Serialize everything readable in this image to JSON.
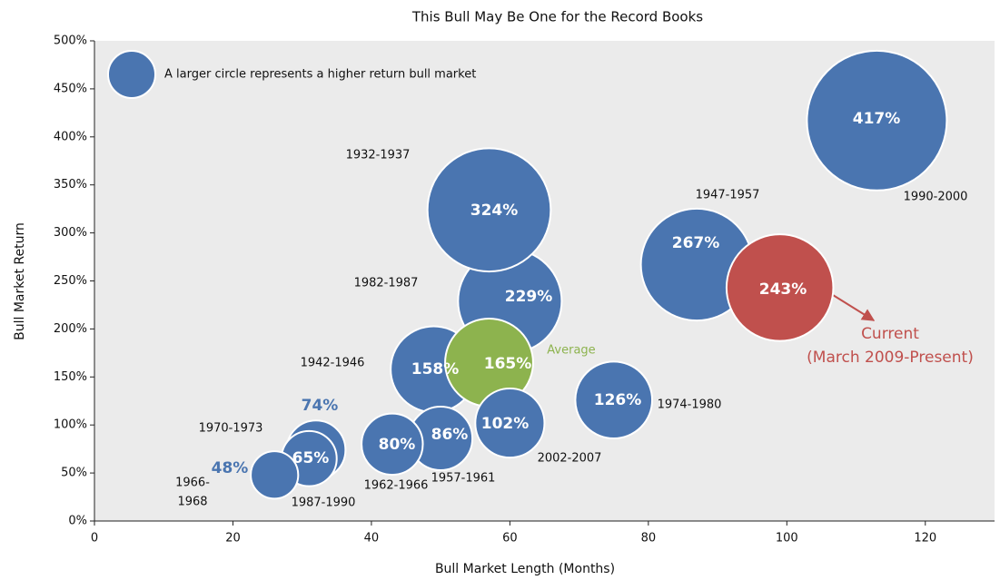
{
  "chart_data": {
    "type": "bubble",
    "title": "This Bull May Be One for the Record Books",
    "x_label": "Bull Market Length (Months)",
    "y_label": "Bull Market Return",
    "legend_text": "A larger circle represents a higher return bull market",
    "legend_color": "#4a75b0",
    "point_labels": [
      "1990-2000",
      "1947-1957",
      [
        "Current",
        "(March 2009-Present)"
      ],
      "1982-1987",
      "1932-1937",
      "1942-1946",
      "Average",
      "1974-1980",
      "2002-2007",
      "1957-1961",
      "1962-1966",
      "1970-1973",
      "1987-1990",
      [
        "1966-",
        "1968"
      ]
    ],
    "x": [
      113,
      87,
      99,
      60,
      57,
      49,
      57,
      75,
      60,
      50,
      43,
      32,
      31,
      26
    ],
    "values": [
      417,
      267,
      243,
      229,
      324,
      158,
      165,
      126,
      102,
      86,
      80,
      74,
      65,
      48
    ],
    "value_labels": [
      "417%",
      "267%",
      "243%",
      "229%",
      "324%",
      "158%",
      "165%",
      "126%",
      "102%",
      "86%",
      "80%",
      "74%",
      "65%",
      "48%"
    ],
    "colors": [
      "#4a75b0",
      "#4a75b0",
      "#c0504d",
      "#4a75b0",
      "#4a75b0",
      "#4a75b0",
      "#8db34e",
      "#4a75b0",
      "#4a75b0",
      "#4a75b0",
      "#4a75b0",
      "#4a75b0",
      "#4a75b0",
      "#4a75b0"
    ],
    "xlim": [
      0,
      130
    ],
    "ylim": [
      0,
      500
    ],
    "xticks": [
      0,
      20,
      40,
      60,
      80,
      100,
      120
    ],
    "yticks": [
      {
        "value": 0,
        "label": "0%"
      },
      {
        "value": 50,
        "label": "50%"
      },
      {
        "value": 100,
        "label": "100%"
      },
      {
        "value": 150,
        "label": "150%"
      },
      {
        "value": 200,
        "label": "200%"
      },
      {
        "value": 250,
        "label": "250%"
      },
      {
        "value": 300,
        "label": "300%"
      },
      {
        "value": 350,
        "label": "350%"
      },
      {
        "value": 400,
        "label": "400%"
      },
      {
        "value": 450,
        "label": "450%"
      },
      {
        "value": 500,
        "label": "500%"
      }
    ]
  }
}
